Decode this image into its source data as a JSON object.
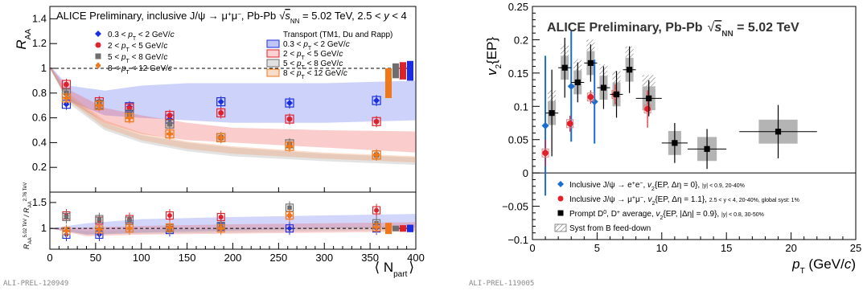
{
  "chart_data": [
    {
      "type": "scatter",
      "title": "ALICE Preliminary, inclusive J/ψ → μ⁺μ⁻, Pb-Pb √sNN = 5.02 TeV, 2.5 < y < 4",
      "title_parts": [
        "ALICE Preliminary, inclusive J/ψ → μ",
        "+",
        "μ",
        "−",
        ", Pb-Pb",
        "√",
        "s",
        "NN",
        " = 5.02 TeV, 2.5 < ",
        "y",
        " < 4"
      ],
      "ylabel": "R_AA",
      "ylabel_parts": [
        "R",
        "AA"
      ],
      "xlabel": "⟨ N_part ⟩",
      "xlabel_parts": [
        "⟨ N",
        "part",
        "⟩"
      ],
      "ratio_ylabel": "R_AA^5.02 TeV / R_AA^2.76 TeV",
      "ratio_ylabel_parts": [
        "R",
        "AA",
        "5.02 TeV",
        "/ R",
        "AA",
        "2.76 TeV"
      ],
      "xlim": [
        0,
        400
      ],
      "ylim": [
        0,
        1.5
      ],
      "ratio_ylim": [
        0.6,
        1.7
      ],
      "x_ticks": [
        "0",
        "50",
        "100",
        "150",
        "200",
        "250",
        "300",
        "350",
        "400"
      ],
      "y_ticks": [
        "0.2",
        "0.4",
        "0.6",
        "0.8",
        "1",
        "1.2",
        "1.4"
      ],
      "ratio_y_ticks": [
        "1",
        "1.5"
      ],
      "ratio_tick_values": [
        1,
        1.5
      ],
      "y_tick_values": [
        0.2,
        0.4,
        0.6,
        0.8,
        1.0,
        1.2,
        1.4
      ],
      "legend_left": [
        "0.3 < p_T < 2 GeV/c",
        "2 < p_T < 5 GeV/c",
        "5 < p_T < 8 GeV/c",
        "8 < p_T < 12 GeV/c"
      ],
      "legend_left_parts": [
        [
          "0.3 < ",
          "p",
          "T",
          " < 2 GeV/",
          "c"
        ],
        [
          "2 < ",
          "p",
          "T",
          " < 5 GeV/",
          "c"
        ],
        [
          "5 < ",
          "p",
          "T",
          " < 8 GeV/",
          "c"
        ],
        [
          "8 < ",
          "p",
          "T",
          " < 12 GeV/",
          "c"
        ]
      ],
      "legend_right_title": "Transport (TM1, Du and Rapp)",
      "legend_right": [
        "0.3 < p_T < 2 GeV/c",
        "2 < p_T < 5 GeV/c",
        "5 < p_T < 8 GeV/c",
        "8 < p_T < 12 GeV/c"
      ],
      "legend_right_parts": [
        [
          "0.3 < ",
          "p",
          "T",
          " < 2 GeV/",
          "c"
        ],
        [
          "2 < ",
          "p",
          "T",
          " < 5 GeV/",
          "c"
        ],
        [
          "5 < ",
          "p",
          "T",
          " < 8 GeV/",
          "c"
        ],
        [
          "8 < ",
          "p",
          "T",
          " < 12 GeV/",
          "c"
        ]
      ],
      "series": [
        {
          "color": "#1a2ee0",
          "marker": "diamond",
          "x": [
            18,
            54,
            87,
            131,
            187,
            262,
            357
          ],
          "y": [
            0.71,
            0.7,
            0.69,
            0.59,
            0.73,
            0.72,
            0.74
          ],
          "ratio": [
            0.88,
            0.88,
            1.15,
            0.97,
            1.03,
            1.0,
            1.0
          ]
        },
        {
          "color": "#e0202a",
          "marker": "circle",
          "x": [
            18,
            54,
            87,
            131,
            187,
            262,
            357
          ],
          "y": [
            0.87,
            0.73,
            0.68,
            0.62,
            0.64,
            0.59,
            0.57
          ],
          "ratio": [
            1.25,
            1.15,
            1.18,
            1.25,
            1.22,
            1.25,
            1.35
          ]
        },
        {
          "color": "#6e6e6e",
          "marker": "square",
          "x": [
            18,
            54,
            87,
            131,
            187,
            262,
            357
          ],
          "y": [
            0.8,
            0.71,
            0.63,
            0.55,
            0.44,
            0.39,
            0.3
          ],
          "ratio": [
            1.22,
            1.18,
            1.15,
            1.0,
            1.05,
            1.4,
            1.1
          ]
        },
        {
          "color": "#f07818",
          "marker": "cross",
          "x": [
            18,
            54,
            87,
            131,
            187,
            262,
            357
          ],
          "y": [
            0.76,
            0.7,
            0.6,
            0.47,
            0.44,
            0.37,
            0.3
          ],
          "ratio": [
            0.95,
            0.98,
            1.0,
            1.02,
            1.0,
            1.25,
            1.02
          ]
        }
      ],
      "bands": [
        {
          "color": "#4a5cf0",
          "upper": [
            [
              0,
              1.02
            ],
            [
              20,
              0.86
            ],
            [
              60,
              0.82
            ],
            [
              100,
              0.86
            ],
            [
              150,
              0.88
            ],
            [
              200,
              0.88
            ],
            [
              300,
              0.88
            ],
            [
              400,
              0.9
            ]
          ],
          "lower": [
            [
              0,
              1.0
            ],
            [
              20,
              0.74
            ],
            [
              60,
              0.62
            ],
            [
              100,
              0.6
            ],
            [
              150,
              0.58
            ],
            [
              200,
              0.56
            ],
            [
              300,
              0.56
            ],
            [
              400,
              0.58
            ]
          ]
        },
        {
          "color": "#f04848",
          "upper": [
            [
              0,
              1.02
            ],
            [
              20,
              0.83
            ],
            [
              60,
              0.68
            ],
            [
              100,
              0.62
            ],
            [
              150,
              0.56
            ],
            [
              200,
              0.52
            ],
            [
              300,
              0.5
            ],
            [
              400,
              0.49
            ]
          ],
          "lower": [
            [
              0,
              1.0
            ],
            [
              20,
              0.74
            ],
            [
              60,
              0.56
            ],
            [
              100,
              0.47
            ],
            [
              150,
              0.42
            ],
            [
              200,
              0.4
            ],
            [
              300,
              0.36
            ],
            [
              400,
              0.32
            ]
          ]
        },
        {
          "color": "#9a9a9a",
          "upper": [
            [
              0,
              1.02
            ],
            [
              20,
              0.78
            ],
            [
              60,
              0.56
            ],
            [
              100,
              0.46
            ],
            [
              150,
              0.4
            ],
            [
              200,
              0.36
            ],
            [
              300,
              0.31
            ],
            [
              400,
              0.28
            ]
          ],
          "lower": [
            [
              0,
              1.0
            ],
            [
              20,
              0.72
            ],
            [
              60,
              0.5
            ],
            [
              100,
              0.4
            ],
            [
              150,
              0.33
            ],
            [
              200,
              0.29
            ],
            [
              300,
              0.25
            ],
            [
              400,
              0.22
            ]
          ]
        },
        {
          "color": "#f08a4a",
          "upper": [
            [
              0,
              1.02
            ],
            [
              20,
              0.8
            ],
            [
              60,
              0.58
            ],
            [
              100,
              0.48
            ],
            [
              150,
              0.41
            ],
            [
              200,
              0.37
            ],
            [
              300,
              0.32
            ],
            [
              400,
              0.29
            ]
          ],
          "lower": [
            [
              0,
              1.0
            ],
            [
              20,
              0.74
            ],
            [
              60,
              0.52
            ],
            [
              100,
              0.42
            ],
            [
              150,
              0.35
            ],
            [
              200,
              0.31
            ],
            [
              300,
              0.27
            ],
            [
              400,
              0.24
            ]
          ]
        }
      ],
      "global_boxes": [
        {
          "color": "#f07818",
          "center": 0.88,
          "half": 0.12
        },
        {
          "color": "#6e6e6e",
          "center": 0.98,
          "half": 0.06
        },
        {
          "color": "#e0202a",
          "center": 0.98,
          "half": 0.07
        },
        {
          "color": "#1a2ee0",
          "center": 0.98,
          "half": 0.08
        }
      ],
      "id_label": "ALI-PREL-120949"
    },
    {
      "type": "scatter",
      "title": "ALICE Preliminary, Pb-Pb √sNN = 5.02 TeV",
      "title_parts": [
        "ALICE Preliminary, Pb-Pb",
        "√",
        "s",
        "NN",
        " = 5.02 TeV"
      ],
      "ylabel": "v2{EP}",
      "ylabel_parts": [
        "v",
        "2",
        "{EP}"
      ],
      "xlabel": "p_T (GeV/c)",
      "xlabel_parts": [
        "p",
        "T",
        " (GeV/",
        "c",
        ")"
      ],
      "xlim": [
        0,
        25
      ],
      "ylim": [
        -0.1,
        0.25
      ],
      "x_ticks": [
        "0",
        "5",
        "10",
        "15",
        "20",
        "25"
      ],
      "x_tick_values": [
        0,
        5,
        10,
        15,
        20,
        25
      ],
      "y_ticks": [
        "−0.1",
        "−0.05",
        "0",
        "0.05",
        "0.1",
        "0.15",
        "0.2",
        "0.25"
      ],
      "y_tick_values": [
        -0.1,
        -0.05,
        0,
        0.05,
        0.1,
        0.15,
        0.2,
        0.25
      ],
      "series": [
        {
          "name": "Inclusive J/ψ → e⁺e⁻, v2{EP, Δη = 0}, |y| < 0.9, 20-40%",
          "name_parts": [
            "Inclusive J/ψ → e",
            "+",
            "e",
            "−",
            ", ",
            "v",
            "2",
            "{EP, Δη = 0}, ",
            "|y| < 0.9, 20-40%"
          ],
          "color": "#1a6ed0",
          "marker": "diamond",
          "x": [
            1.0,
            3.0,
            4.8
          ],
          "y": [
            0.071,
            0.13,
            0.107
          ],
          "err": [
            0.105,
            0.083,
            0.063
          ]
        },
        {
          "name": "Inclusive J/ψ → μ⁺μ⁻, v2{EP, Δη = 1.1}, 2.5 < y < 4, 20-40%, global syst: 1%",
          "name_parts": [
            "Inclusive J/ψ → μ",
            "+",
            "μ",
            "−",
            ", ",
            "v",
            "2",
            "{EP, Δη = 1.1}, ",
            "2.5 < y < 4, 20-40%, global syst: 1%"
          ],
          "color": "#e0202a",
          "marker": "circle",
          "x": [
            1.0,
            2.9,
            4.5,
            6.4,
            8.9
          ],
          "y": [
            0.03,
            0.074,
            0.114,
            0.118,
            0.096
          ],
          "err": [
            0.02,
            0.012,
            0.01,
            0.015,
            0.028
          ]
        },
        {
          "name": "Prompt D⁰, D⁺ average, v2{EP, |Δη| = 0.9}, |y| < 0.8, 30-50%",
          "name_parts": [
            "Prompt D",
            "0",
            ", D",
            "+",
            " average, ",
            "v",
            "2",
            "{EP, |Δη| = 0.9}, ",
            "|y| < 0.8, 30-50%"
          ],
          "color": "#000000",
          "marker": "square",
          "x": [
            1.5,
            2.5,
            3.5,
            4.5,
            5.5,
            6.5,
            7.5,
            9.0,
            11.0,
            13.5,
            19.0
          ],
          "y": [
            0.09,
            0.158,
            0.136,
            0.165,
            0.128,
            0.118,
            0.155,
            0.112,
            0.045,
            0.036,
            0.062
          ],
          "xerr": [
            0.5,
            0.5,
            0.5,
            0.5,
            0.5,
            0.5,
            0.5,
            1.0,
            1.0,
            1.5,
            3.0
          ],
          "err": [
            0.065,
            0.045,
            0.03,
            0.028,
            0.032,
            0.035,
            0.035,
            0.027,
            0.03,
            0.03,
            0.04
          ]
        }
      ],
      "legend_syst": "Syst from B feed-down",
      "id_label": "ALI-PREL-119005"
    }
  ]
}
